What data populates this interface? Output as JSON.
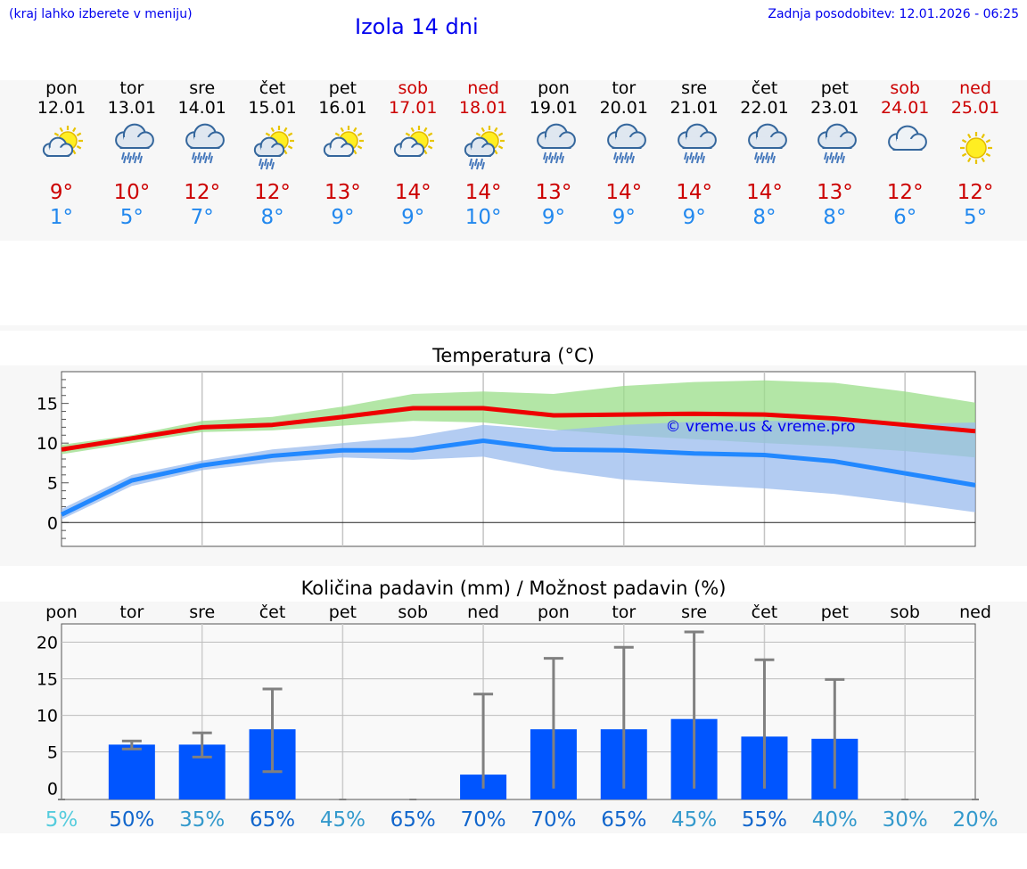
{
  "header": {
    "menu_hint": "(kraj lahko izberete v meniju)",
    "title": "Izola 14 dni",
    "updated": "Zadnja posodobitev: 12.01.2026 - 06:25"
  },
  "days": [
    {
      "name": "pon",
      "date": "12.01",
      "icon": "sun-cloud-icon",
      "max": "9°",
      "min": "1°",
      "weekend": false
    },
    {
      "name": "tor",
      "date": "13.01",
      "icon": "rain-cloud-icon",
      "max": "10°",
      "min": "5°",
      "weekend": false
    },
    {
      "name": "sre",
      "date": "14.01",
      "icon": "rain-cloud-icon",
      "max": "12°",
      "min": "7°",
      "weekend": false
    },
    {
      "name": "čet",
      "date": "15.01",
      "icon": "sun-rain-icon",
      "max": "12°",
      "min": "8°",
      "weekend": false
    },
    {
      "name": "pet",
      "date": "16.01",
      "icon": "sun-cloud-icon",
      "max": "13°",
      "min": "9°",
      "weekend": false
    },
    {
      "name": "sob",
      "date": "17.01",
      "icon": "sun-cloud-icon",
      "max": "14°",
      "min": "9°",
      "weekend": true
    },
    {
      "name": "ned",
      "date": "18.01",
      "icon": "sun-rain-icon",
      "max": "14°",
      "min": "10°",
      "weekend": true
    },
    {
      "name": "pon",
      "date": "19.01",
      "icon": "rain-cloud-icon",
      "max": "13°",
      "min": "9°",
      "weekend": false
    },
    {
      "name": "tor",
      "date": "20.01",
      "icon": "rain-cloud-icon",
      "max": "14°",
      "min": "9°",
      "weekend": false
    },
    {
      "name": "sre",
      "date": "21.01",
      "icon": "rain-cloud-icon",
      "max": "14°",
      "min": "9°",
      "weekend": false
    },
    {
      "name": "čet",
      "date": "22.01",
      "icon": "rain-cloud-icon",
      "max": "14°",
      "min": "8°",
      "weekend": false
    },
    {
      "name": "pet",
      "date": "23.01",
      "icon": "rain-cloud-icon",
      "max": "13°",
      "min": "8°",
      "weekend": false
    },
    {
      "name": "sob",
      "date": "24.01",
      "icon": "cloud-icon",
      "max": "12°",
      "min": "6°",
      "weekend": true
    },
    {
      "name": "ned",
      "date": "25.01",
      "icon": "sun-icon",
      "max": "12°",
      "min": "5°",
      "weekend": true
    }
  ],
  "colors": {
    "max_line": "#ee0000",
    "min_line": "#2288ff",
    "max_band": "#99dd88",
    "min_band": "#99bbee",
    "bar": "#0055ff",
    "error": "#808080"
  },
  "chart_data": [
    {
      "type": "line",
      "title": "Temperatura (°C)",
      "watermark": "© vreme.us & vreme.pro",
      "x": [
        "12.01",
        "13.01",
        "14.01",
        "15.01",
        "16.01",
        "17.01",
        "18.01",
        "19.01",
        "20.01",
        "21.01",
        "22.01",
        "23.01",
        "24.01",
        "25.01"
      ],
      "ylim": [
        -3,
        19
      ],
      "yticks": [
        0,
        5,
        10,
        15
      ],
      "series": [
        {
          "values": [
            9.2,
            10.6,
            12.0,
            12.3,
            13.3,
            14.4,
            14.4,
            13.5,
            13.6,
            13.7,
            13.6,
            13.1,
            12.3,
            11.5
          ]
        },
        {
          "values": [
            1.0,
            5.3,
            7.2,
            8.4,
            9.1,
            9.1,
            10.3,
            9.2,
            9.1,
            8.7,
            8.5,
            7.7,
            6.2,
            4.7
          ]
        }
      ],
      "max_band_low": [
        8.6,
        10.0,
        11.4,
        11.6,
        12.2,
        12.8,
        12.6,
        11.7,
        11.0,
        10.5,
        10.0,
        9.6,
        9.0,
        8.2
      ],
      "max_band_high": [
        9.8,
        11.0,
        12.8,
        13.3,
        14.6,
        16.2,
        16.5,
        16.2,
        17.2,
        17.7,
        17.9,
        17.6,
        16.5,
        15.1
      ],
      "min_band_low": [
        0.4,
        4.6,
        6.6,
        7.6,
        8.2,
        7.9,
        8.3,
        6.6,
        5.4,
        4.8,
        4.3,
        3.6,
        2.5,
        1.3
      ],
      "min_band_high": [
        1.7,
        6.0,
        7.8,
        9.2,
        10.0,
        10.8,
        12.3,
        11.6,
        12.3,
        12.7,
        12.8,
        12.8,
        12.4,
        12.6
      ]
    },
    {
      "type": "bar",
      "title": "Količina padavin (mm) / Možnost padavin (%)",
      "categories": [
        "pon",
        "tor",
        "sre",
        "čet",
        "pet",
        "sob",
        "ned",
        "pon",
        "tor",
        "sre",
        "čet",
        "pet",
        "sob",
        "ned"
      ],
      "values": [
        0,
        6.0,
        6.0,
        8.1,
        0,
        0,
        1.9,
        8.1,
        8.1,
        9.5,
        7.1,
        6.8,
        0,
        0
      ],
      "error_low": [
        0,
        5.4,
        4.3,
        2.3,
        0,
        0,
        0,
        0,
        0,
        0,
        0,
        0,
        0,
        0
      ],
      "error_high": [
        0,
        6.5,
        7.6,
        13.6,
        0,
        0,
        12.9,
        17.8,
        19.3,
        21.4,
        17.6,
        14.9,
        0,
        0
      ],
      "ylim": [
        -1.5,
        22.5
      ],
      "yticks": [
        0,
        5,
        10,
        15,
        20
      ],
      "probability": [
        "5%",
        "50%",
        "35%",
        "65%",
        "45%",
        "65%",
        "70%",
        "70%",
        "65%",
        "45%",
        "55%",
        "40%",
        "30%",
        "20%"
      ],
      "probability_colors": [
        "#55ccdd",
        "#1166cc",
        "#3399cc",
        "#1166cc",
        "#3399cc",
        "#1166cc",
        "#1166cc",
        "#1166cc",
        "#1166cc",
        "#3399cc",
        "#1166cc",
        "#3399cc",
        "#3399cc",
        "#3399cc"
      ]
    }
  ]
}
